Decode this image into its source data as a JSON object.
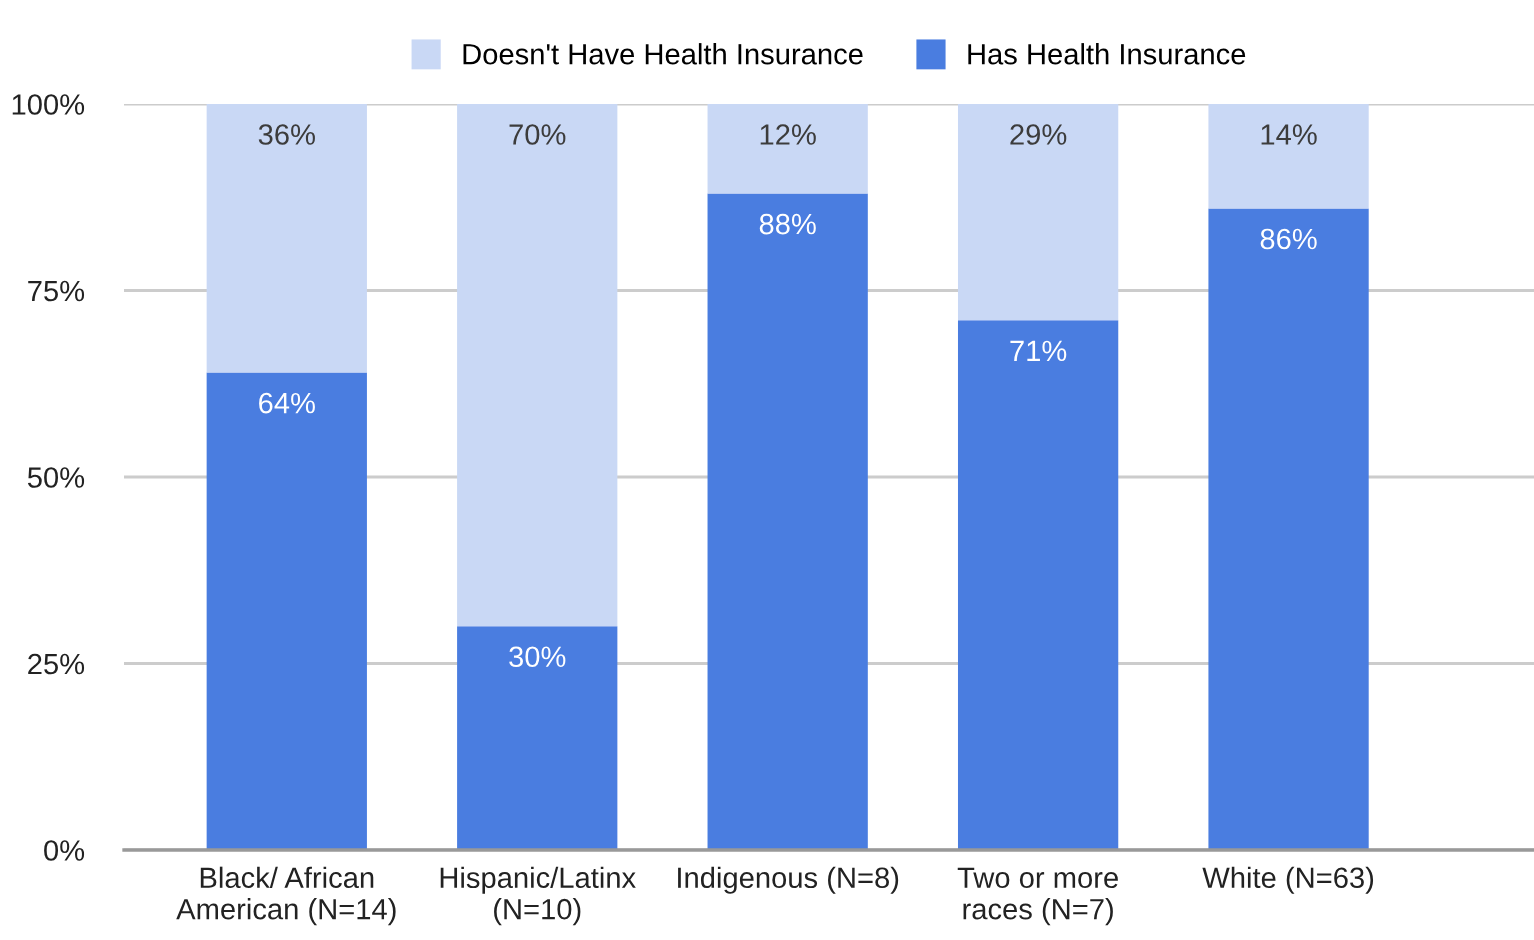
{
  "chart_data": {
    "type": "bar",
    "stacked": true,
    "categories": [
      "Black/ African\nAmerican (N=14)",
      "Hispanic/Latinx\n(N=10)",
      "Indigenous (N=8)",
      "Two or more\nraces (N=7)",
      "White (N=63)"
    ],
    "series": [
      {
        "name": "Has Health Insurance",
        "color": "#4a7de0",
        "values": [
          64,
          30,
          88,
          71,
          86
        ],
        "value_labels": [
          "64%",
          "30%",
          "88%",
          "71%",
          "86%"
        ]
      },
      {
        "name": "Doesn't Have Health Insurance",
        "color": "#c9d8f5",
        "values": [
          36,
          70,
          12,
          29,
          14
        ],
        "value_labels": [
          "36%",
          "70%",
          "12%",
          "29%",
          "14%"
        ]
      }
    ],
    "ylim": [
      0,
      100
    ],
    "yticks": [
      {
        "value": 0,
        "label": "0%"
      },
      {
        "value": 25,
        "label": "25%"
      },
      {
        "value": 50,
        "label": "50%"
      },
      {
        "value": 75,
        "label": "75%"
      },
      {
        "value": 100,
        "label": "100%"
      }
    ],
    "grid": "y",
    "legend": "top"
  }
}
